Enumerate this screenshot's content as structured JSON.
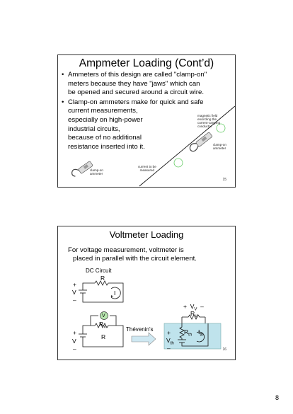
{
  "slide1": {
    "title": "Ampmeter Loading (Cont’d)",
    "bullet1_lines": [
      "Ammeters of this design are called \"clamp-on\"",
      "meters because they have \"jaws\" which can",
      "be opened and secured around a circuit wire."
    ],
    "bullet2_lines": [
      "Clamp-on ammeters make for quick and safe",
      "current measurements,",
      "especially on high-power",
      "industrial circuits,",
      "because of no additional",
      "resistance inserted into it."
    ],
    "annotations": {
      "magnetic_field": [
        "magnetic field",
        "encircling the",
        "current-carrying",
        "conductor"
      ],
      "clamp_on_right": [
        "clamp-on",
        "ammeter"
      ],
      "clamp_on_left": [
        "clamp-on",
        "ammeter"
      ],
      "current_measured": [
        "current to be",
        "measured"
      ]
    },
    "slide_number": "15"
  },
  "slide2": {
    "title": "Voltmeter Loading",
    "body_lines": [
      "For voltage measurement, voltmeter is",
      "placed in parallel with the circuit element."
    ],
    "dc_circuit_label": "DC Circuit",
    "labels": {
      "plus": "+",
      "minus": "–",
      "V": "V",
      "R": "R",
      "I": "I",
      "RV_main": "R",
      "RV_sub": "V",
      "voltmeter_symbol": "V",
      "thevenin": "Thévenin’s",
      "vv_label": "V",
      "vv_sub": "V",
      "rth_main": "R",
      "rth_sub": "th",
      "ith_main": "I",
      "ith_sub": "th",
      "vth_main": "V",
      "vth_sub": "th"
    },
    "slide_number": "16"
  },
  "page_number": "8"
}
